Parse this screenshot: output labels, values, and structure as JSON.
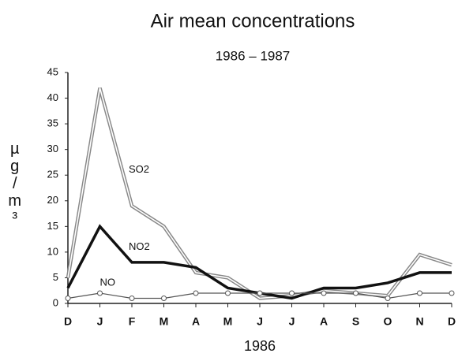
{
  "chart_data": {
    "type": "line",
    "title": "Air mean concentrations",
    "subtitle": "1986 – 1987",
    "y_label": "µg/m³",
    "x_label": "1986",
    "categories": [
      "D",
      "J",
      "F",
      "M",
      "A",
      "M",
      "J",
      "J",
      "A",
      "S",
      "O",
      "N",
      "D"
    ],
    "series": [
      {
        "name": "SO2",
        "color": "#888888",
        "values": [
          5,
          42,
          19,
          15,
          6,
          5,
          1,
          1.5,
          2.5,
          2,
          1.5,
          9.5,
          7.5
        ]
      },
      {
        "name": "NO2",
        "color": "#111111",
        "values": [
          3,
          15,
          8,
          8,
          7,
          3,
          2,
          1,
          3,
          3,
          4,
          6,
          6
        ]
      },
      {
        "name": "NO",
        "color": "#555555",
        "values": [
          1,
          2,
          1,
          1,
          2,
          2,
          2,
          2,
          2,
          2,
          1,
          2,
          2
        ]
      }
    ],
    "ylim": [
      0,
      45
    ],
    "yticks": [
      0,
      5,
      10,
      15,
      20,
      25,
      30,
      35,
      40,
      45
    ],
    "grid": false
  }
}
